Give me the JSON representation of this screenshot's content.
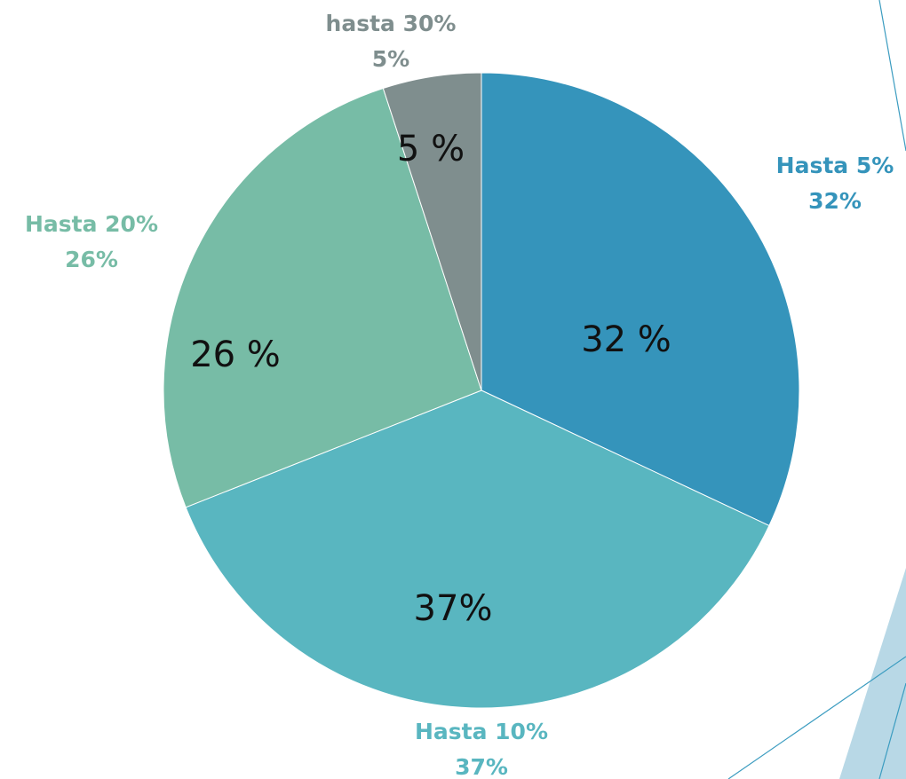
{
  "chart_data": {
    "type": "pie",
    "categories": [
      "Hasta 5%",
      "Hasta 10%",
      "Hasta 20%",
      "hasta 30%"
    ],
    "values": [
      32,
      37,
      26,
      5
    ],
    "value_labels": [
      "32 %",
      "37%",
      "26 %",
      "5 %"
    ],
    "outer_value_labels": [
      "32%",
      "37%",
      "26%",
      "5%"
    ],
    "colors": [
      "#3594bb",
      "#59b6c0",
      "#77bca6",
      "#7f8e8e"
    ]
  }
}
